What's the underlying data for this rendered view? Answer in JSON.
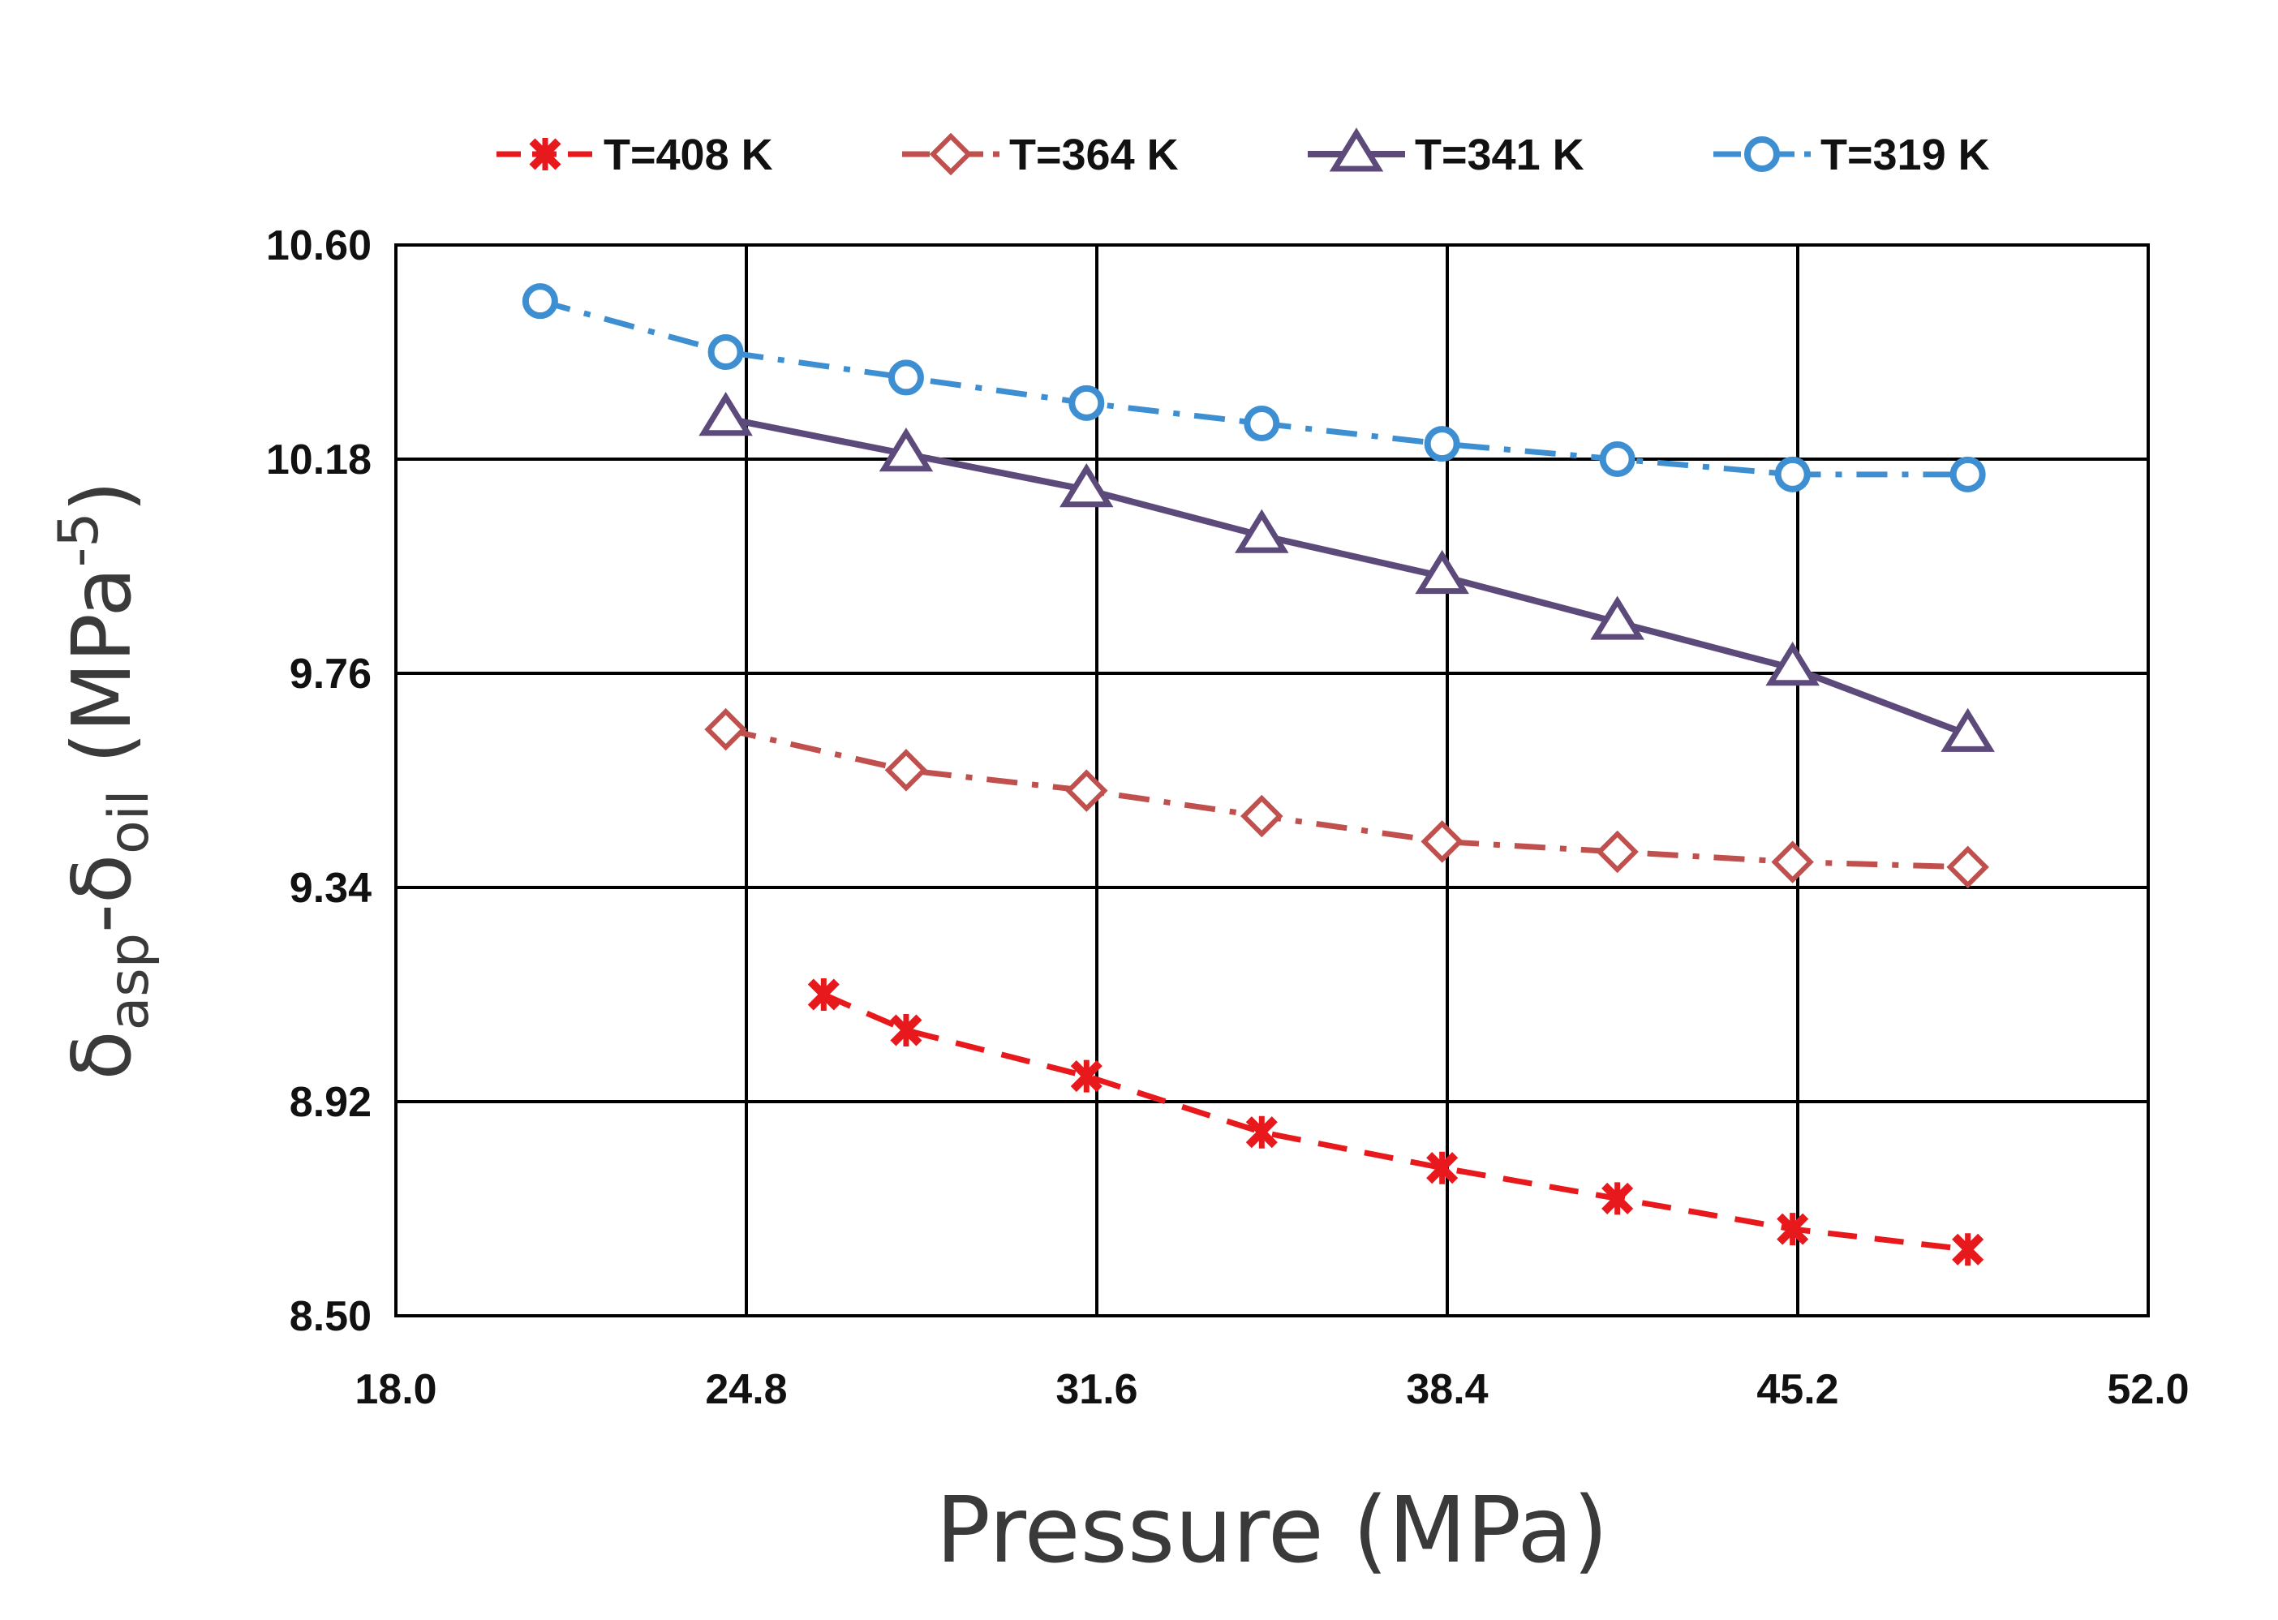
{
  "chart_data": {
    "type": "line",
    "title": "",
    "xlabel": "Pressure (MPa)",
    "ylabel": {
      "delta": "δ",
      "sub_asp": "asp",
      "dash": "-",
      "sub_oil": "oil",
      "unit_open": " (MPa",
      "unit_exp": "-5",
      "unit_close": ")"
    },
    "xlim": [
      18.0,
      52.0
    ],
    "ylim": [
      8.5,
      10.6
    ],
    "x_ticks": [
      "18.0",
      "24.8",
      "31.6",
      "38.4",
      "45.2",
      "52.0"
    ],
    "y_ticks": [
      "8.50",
      "8.92",
      "9.34",
      "9.76",
      "10.18",
      "10.60"
    ],
    "x_tick_values": [
      18.0,
      24.8,
      31.6,
      38.4,
      45.2,
      52.0
    ],
    "y_tick_values": [
      8.5,
      8.92,
      9.34,
      9.76,
      10.18,
      10.6
    ],
    "grid": true,
    "legend_position": "top",
    "series": [
      {
        "name": "T=408 K",
        "color": "#e8191c",
        "dash": "dash",
        "marker": "star",
        "x": [
          26.3,
          27.9,
          31.4,
          34.8,
          38.3,
          41.7,
          45.1,
          48.5
        ],
        "y": [
          9.13,
          9.06,
          8.97,
          8.86,
          8.79,
          8.73,
          8.67,
          8.63
        ]
      },
      {
        "name": "T=364 K",
        "color": "#c0504d",
        "dash": "dashdot",
        "marker": "diamond",
        "x": [
          24.4,
          27.9,
          31.4,
          34.8,
          38.3,
          41.7,
          45.1,
          48.5
        ],
        "y": [
          9.65,
          9.57,
          9.53,
          9.48,
          9.43,
          9.41,
          9.39,
          9.38
        ]
      },
      {
        "name": "T=341 K",
        "color": "#5c4a7b",
        "dash": "solid",
        "marker": "triangle",
        "x": [
          24.4,
          27.9,
          31.4,
          34.8,
          38.3,
          41.7,
          45.1,
          48.5
        ],
        "y": [
          10.26,
          10.19,
          10.12,
          10.03,
          9.95,
          9.86,
          9.77,
          9.64
        ]
      },
      {
        "name": "T=319 K",
        "color": "#3d8fd1",
        "dash": "dashdot",
        "marker": "circle",
        "x": [
          20.8,
          24.4,
          27.9,
          31.4,
          34.8,
          38.3,
          41.7,
          45.1,
          48.5
        ],
        "y": [
          10.49,
          10.39,
          10.34,
          10.29,
          10.25,
          10.21,
          10.18,
          10.15,
          10.15
        ]
      }
    ]
  }
}
